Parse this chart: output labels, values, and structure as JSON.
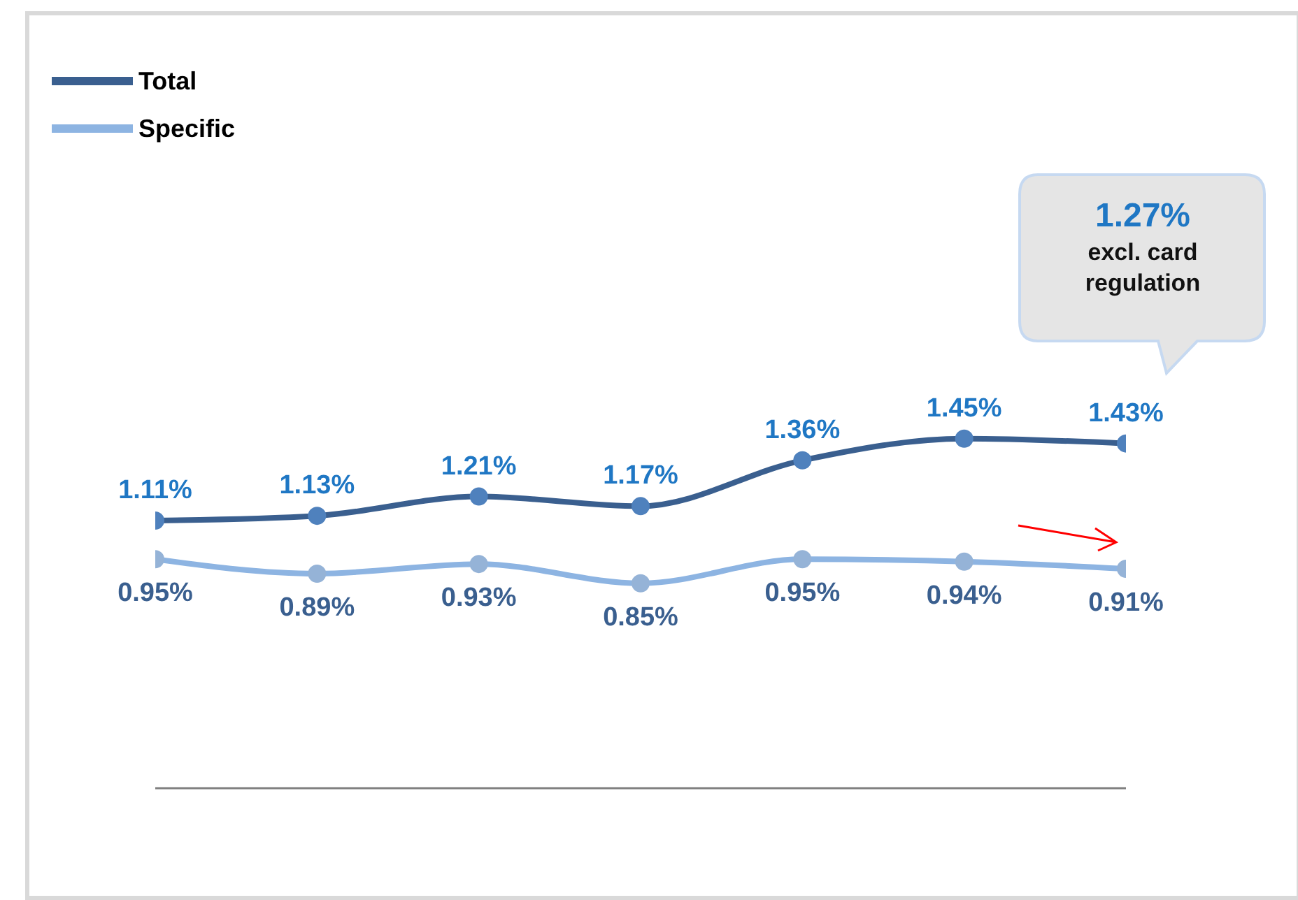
{
  "chart_data": {
    "type": "line",
    "categories": [
      null,
      null,
      null,
      null,
      null,
      null,
      null
    ],
    "legend": "top left",
    "marker": "circle",
    "series": [
      {
        "name": "Total",
        "color": "#3a5f8f",
        "values": [
          1.11,
          1.13,
          1.21,
          1.17,
          1.36,
          1.45,
          1.43
        ],
        "value_labels": [
          "1.11%",
          "1.13%",
          "1.21%",
          "1.17%",
          "1.36%",
          "1.45%",
          "1.43%"
        ]
      },
      {
        "name": "Specific",
        "color": "#8db4e2",
        "values": [
          0.95,
          0.89,
          0.93,
          0.85,
          0.95,
          0.94,
          0.91
        ],
        "value_labels": [
          "0.95%",
          "0.89%",
          "0.93%",
          "0.85%",
          "0.95%",
          "0.94%",
          "0.91%"
        ]
      }
    ],
    "annotations": [
      "1.27%",
      "excl. card regulation"
    ]
  }
}
